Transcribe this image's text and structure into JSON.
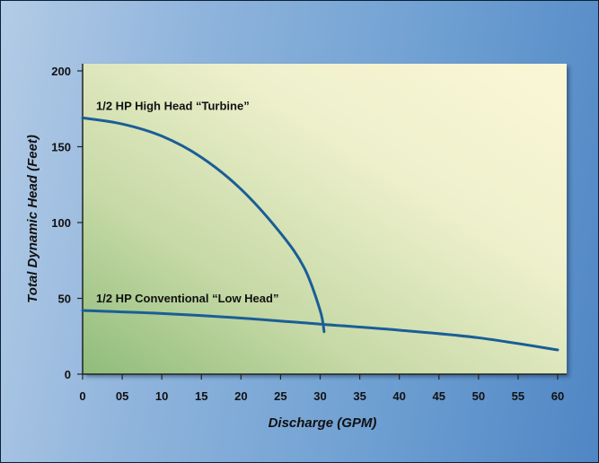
{
  "chart_data": {
    "type": "line",
    "xlabel": "Discharge (GPM)",
    "ylabel": "Total Dynamic Head (Feet)",
    "xlim": [
      0,
      60
    ],
    "ylim": [
      0,
      200
    ],
    "x_ticks": [
      "0",
      "05",
      "10",
      "15",
      "20",
      "25",
      "30",
      "35",
      "40",
      "45",
      "50",
      "55",
      "60"
    ],
    "x_tick_values": [
      0,
      5,
      10,
      15,
      20,
      25,
      30,
      35,
      40,
      45,
      50,
      55,
      60
    ],
    "y_ticks": [
      "0",
      "50",
      "100",
      "150",
      "200"
    ],
    "y_tick_values": [
      0,
      50,
      100,
      150,
      200
    ],
    "grid": false,
    "series": [
      {
        "name": "1/2 HP High Head “Turbine”",
        "color": "#1a5e96",
        "x": [
          0,
          5,
          10,
          15,
          20,
          25,
          28,
          30,
          30.5
        ],
        "y": [
          169,
          165,
          157,
          143,
          122,
          93,
          70,
          42,
          28
        ]
      },
      {
        "name": "1/2 HP Conventional “Low Head”",
        "color": "#1a5e96",
        "x": [
          0,
          10,
          20,
          30,
          40,
          50,
          60
        ],
        "y": [
          42,
          40,
          37,
          33,
          29,
          24,
          16
        ]
      }
    ],
    "colors": {
      "plot_background_start": "#8fbc7a",
      "plot_background_end": "#fbf7d6",
      "line": "#1a5e96",
      "axis": "#222222"
    }
  }
}
